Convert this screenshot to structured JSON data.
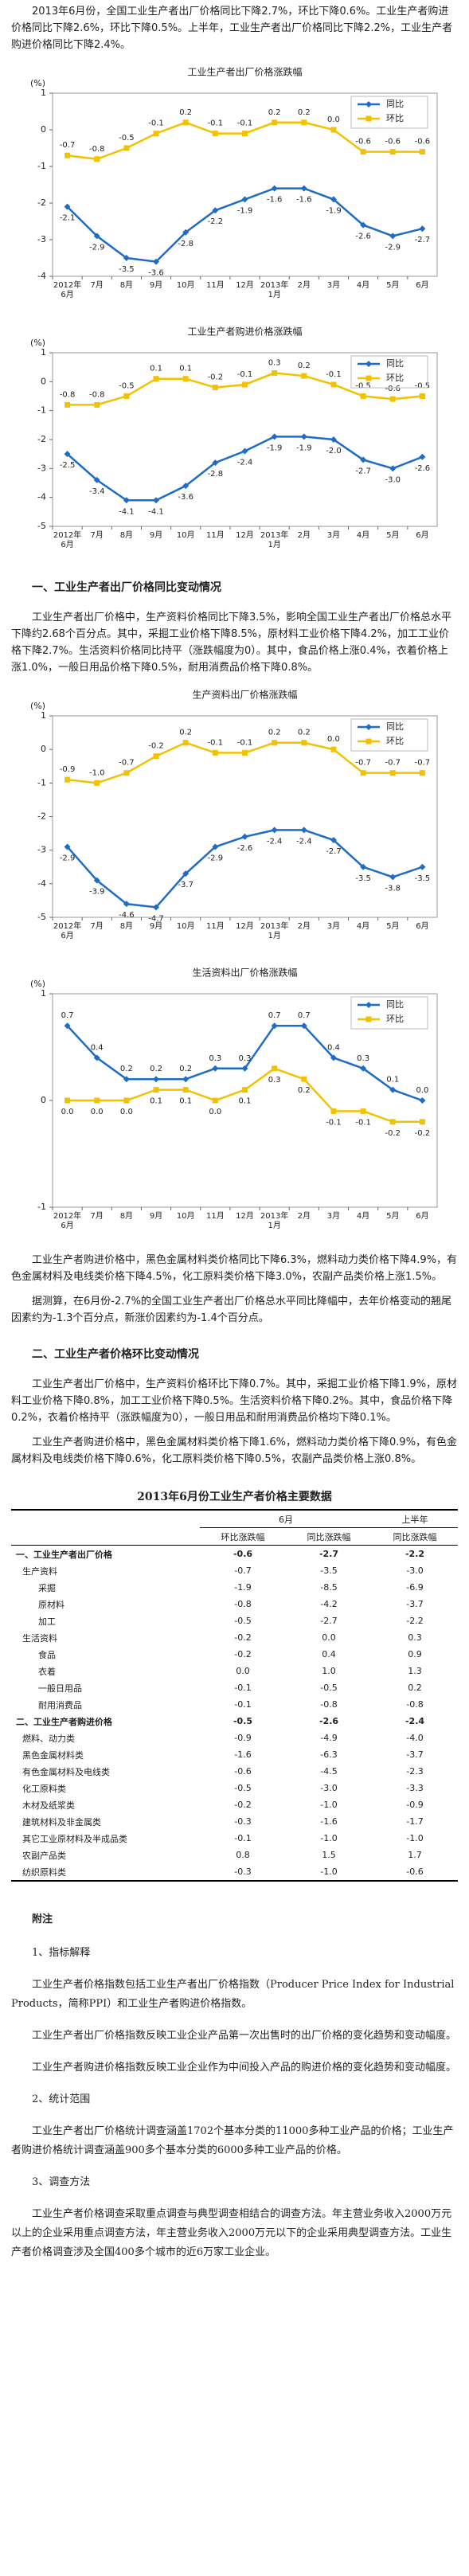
{
  "paragraphs": [
    "2013年6月份，全国工业生产者出厂价格同比下降2.7%，环比下降0.6%。工业生产者购进价格同比下降2.6%，环比下降0.5%。上半年，工业生产者出厂价格同比下降2.2%，工业生产者购进价格同比下降2.4%。",
    "工业生产者出厂价格中，生产资料价格同比下降3.5%，影响全国工业生产者出厂价格总水平下降约2.68个百分点。其中，采掘工业价格下降8.5%，原材料工业价格下降4.2%，加工工业价格下降2.7%。生活资料价格同比持平（涨跌幅度为0）。其中，食品价格上涨0.4%，衣着价格上涨1.0%，一般日用品价格下降0.5%，耐用消费品价格下降0.8%。",
    "工业生产者购进价格中，黑色金属材料类价格同比下降6.3%，燃料动力类价格下降4.9%，有色金属材料及电线类价格下降4.5%，化工原料类价格下降3.0%，农副产品类价格上涨1.5%。",
    "据测算，在6月份-2.7%的全国工业生产者出厂价格总水平同比降幅中，去年价格变动的翘尾因素约为-1.3个百分点，新涨价因素约为-1.4个百分点。",
    "工业生产者出厂价格中，生产资料价格环比下降0.7%。其中，采掘工业价格下降1.9%，原材料工业价格下降0.8%，加工工业价格下降0.5%。生活资料价格下降0.2%。其中，食品价格下降0.2%，衣着价格持平（涨跌幅度为0），一般日用品和耐用消费品价格均下降0.1%。",
    "工业生产者购进价格中，黑色金属材料类价格下降1.6%，燃料动力类价格下降0.9%，有色金属材料及电线类价格下降0.6%，化工原料类价格下降0.5%，农副产品类价格上涨0.8%。"
  ],
  "headings": [
    "一、工业生产者出厂价格同比变动情况",
    "二、工业生产者价格环比变动情况"
  ],
  "chart_data": [
    {
      "type": "line",
      "title": "工业生产者出厂价格涨跌幅",
      "y_label": "(%)",
      "categories": [
        "2012年\n6月",
        "7月",
        "8月",
        "9月",
        "10月",
        "11月",
        "12月",
        "2013年\n1月",
        "2月",
        "3月",
        "4月",
        "5月",
        "6月"
      ],
      "ylim": [
        -4,
        1
      ],
      "yticks": [
        1,
        0,
        -1,
        -2,
        -3,
        -4
      ],
      "series": [
        {
          "name": "同比",
          "color": "#1f6cc4",
          "values": [
            -2.1,
            -2.9,
            -3.5,
            -3.6,
            -2.8,
            -2.2,
            -1.9,
            -1.6,
            -1.6,
            -1.9,
            -2.6,
            -2.9,
            -2.7
          ],
          "value_labels": [
            "-2.1",
            "-2.9",
            "-3.5",
            "-3.6",
            "-2.8",
            "-2.2",
            "-1.9",
            "-1.6",
            "-1.6",
            "-1.9",
            "-2.6",
            "-2.9",
            "-2.7"
          ]
        },
        {
          "name": "环比",
          "color": "#f2c200",
          "values": [
            -0.7,
            -0.8,
            -0.5,
            -0.1,
            0.2,
            -0.1,
            -0.1,
            0.2,
            0.2,
            0.0,
            -0.6,
            -0.6,
            -0.6
          ],
          "value_labels": [
            "-0.7",
            "-0.8",
            "-0.5",
            "-0.1",
            "0.2",
            "-0.1",
            "-0.1",
            "0.2",
            "0.2",
            "0.0",
            "-0.6",
            "-0.6",
            "-0.6"
          ]
        }
      ]
    },
    {
      "type": "line",
      "title": "工业生产者购进价格涨跌幅",
      "y_label": "(%)",
      "categories": [
        "2012年\n6月",
        "7月",
        "8月",
        "9月",
        "10月",
        "11月",
        "12月",
        "2013年\n1月",
        "2月",
        "3月",
        "4月",
        "5月",
        "6月"
      ],
      "ylim": [
        -5,
        1
      ],
      "yticks": [
        1,
        0,
        -1,
        -2,
        -3,
        -4,
        -5
      ],
      "series": [
        {
          "name": "同比",
          "color": "#1f6cc4",
          "values": [
            -2.5,
            -3.4,
            -4.1,
            -4.1,
            -3.6,
            -2.8,
            -2.4,
            -1.9,
            -1.9,
            -2.0,
            -2.7,
            -3.0,
            -2.6
          ],
          "value_labels": [
            "-2.5",
            "-3.4",
            "-4.1",
            "-4.1",
            "-3.6",
            "-2.8",
            "-2.4",
            "-1.9",
            "-1.9",
            "-2.0",
            "-2.7",
            "-3.0",
            "-2.6"
          ]
        },
        {
          "name": "环比",
          "color": "#f2c200",
          "values": [
            -0.8,
            -0.8,
            -0.5,
            0.1,
            0.1,
            -0.2,
            -0.1,
            0.3,
            0.2,
            -0.1,
            -0.5,
            -0.6,
            -0.5
          ],
          "value_labels": [
            "-0.8",
            "-0.8",
            "-0.5",
            "0.1",
            "0.1",
            "-0.2",
            "-0.1",
            "0.3",
            "0.2",
            "-0.1",
            "-0.5",
            "-0.6",
            "-0.5"
          ]
        }
      ]
    },
    {
      "type": "line",
      "title": "生产资料出厂价格涨跌幅",
      "y_label": "(%)",
      "categories": [
        "2012年\n6月",
        "7月",
        "8月",
        "9月",
        "10月",
        "11月",
        "12月",
        "2013年\n1月",
        "2月",
        "3月",
        "4月",
        "5月",
        "6月"
      ],
      "ylim": [
        -5,
        1
      ],
      "yticks": [
        1,
        0,
        -1,
        -2,
        -3,
        -4,
        -5
      ],
      "series": [
        {
          "name": "同比",
          "color": "#1f6cc4",
          "values": [
            -2.9,
            -3.9,
            -4.6,
            -4.7,
            -3.7,
            -2.9,
            -2.6,
            -2.4,
            -2.4,
            -2.7,
            -3.5,
            -3.8,
            -3.5
          ],
          "value_labels": [
            "-2.9",
            "-3.9",
            "-4.6",
            "-4.7",
            "-3.7",
            "-2.9",
            "-2.6",
            "-2.4",
            "-2.4",
            "-2.7",
            "-3.5",
            "-3.8",
            "-3.5"
          ]
        },
        {
          "name": "环比",
          "color": "#f2c200",
          "values": [
            -0.9,
            -1.0,
            -0.7,
            -0.2,
            0.2,
            -0.1,
            -0.1,
            0.2,
            0.2,
            0.0,
            -0.7,
            -0.7,
            -0.7
          ],
          "value_labels": [
            "-0.9",
            "-1.0",
            "-0.7",
            "-0.2",
            "0.2",
            "-0.1",
            "-0.1",
            "0.2",
            "0.2",
            "0.0",
            "-0.7",
            "-0.7",
            "-0.7"
          ]
        }
      ]
    },
    {
      "type": "line",
      "title": "生活资料出厂价格涨跌幅",
      "y_label": "(%)",
      "categories": [
        "2012年\n6月",
        "7月",
        "8月",
        "9月",
        "10月",
        "11月",
        "12月",
        "2013年\n1月",
        "2月",
        "3月",
        "4月",
        "5月",
        "6月"
      ],
      "ylim": [
        -1,
        1
      ],
      "yticks": [
        1,
        0,
        -1
      ],
      "series": [
        {
          "name": "同比",
          "color": "#1f6cc4",
          "values": [
            0.7,
            0.4,
            0.2,
            0.2,
            0.2,
            0.3,
            0.3,
            0.7,
            0.7,
            0.4,
            0.3,
            0.1,
            0.0
          ],
          "value_labels": [
            "0.7",
            "0.4",
            "0.2",
            "0.2",
            "0.2",
            "0.3",
            "0.3",
            "0.7",
            "0.7",
            "0.4",
            "0.3",
            "0.1",
            "0.0"
          ]
        },
        {
          "name": "环比",
          "color": "#f2c200",
          "values": [
            0.0,
            0.0,
            0.0,
            0.1,
            0.1,
            0.0,
            0.1,
            0.3,
            0.2,
            -0.1,
            -0.1,
            -0.2,
            -0.2
          ],
          "value_labels": [
            "0.0",
            "0.0",
            "0.0",
            "0.1",
            "0.1",
            "0.0",
            "0.1",
            "0.3",
            "0.2",
            "-0.1",
            "-0.1",
            "-0.2",
            "-0.2"
          ]
        }
      ]
    }
  ],
  "table": {
    "title": "2013年6月份工业生产者价格主要数据",
    "header": {
      "month": "6月",
      "half": "上半年",
      "mom": "环比涨跌幅",
      "yoy": "同比涨跌幅",
      "half_yoy": "同比涨跌幅"
    },
    "rows": [
      [
        "一、工业生产者出厂价格",
        "-0.6",
        "-2.7",
        "-2.2"
      ],
      [
        "生产资料",
        "-0.7",
        "-3.5",
        "-3.0"
      ],
      [
        "采掘",
        "-1.9",
        "-8.5",
        "-6.9"
      ],
      [
        "原材料",
        "-0.8",
        "-4.2",
        "-3.7"
      ],
      [
        "加工",
        "-0.5",
        "-2.7",
        "-2.2"
      ],
      [
        "生活资料",
        "-0.2",
        "0.0",
        "0.3"
      ],
      [
        "食品",
        "-0.2",
        "0.4",
        "0.9"
      ],
      [
        "衣着",
        "0.0",
        "1.0",
        "1.3"
      ],
      [
        "一般日用品",
        "-0.1",
        "-0.5",
        "0.2"
      ],
      [
        "耐用消费品",
        "-0.1",
        "-0.8",
        "-0.8"
      ],
      [
        "二、工业生产者购进价格",
        "-0.5",
        "-2.6",
        "-2.4"
      ],
      [
        "燃料、动力类",
        "-0.9",
        "-4.9",
        "-4.0"
      ],
      [
        "黑色金属材料类",
        "-1.6",
        "-6.3",
        "-3.7"
      ],
      [
        "有色金属材料及电线类",
        "-0.6",
        "-4.5",
        "-2.3"
      ],
      [
        "化工原料类",
        "-0.5",
        "-3.0",
        "-3.3"
      ],
      [
        "木材及纸浆类",
        "-0.2",
        "-1.0",
        "-0.9"
      ],
      [
        "建筑材料及非金属类",
        "-0.3",
        "-1.6",
        "-1.7"
      ],
      [
        "其它工业原材料及半成品类",
        "-0.1",
        "-1.0",
        "-1.0"
      ],
      [
        "农副产品类",
        "0.8",
        "1.5",
        "1.7"
      ],
      [
        "纺织原料类",
        "-0.3",
        "-1.0",
        "-0.6"
      ]
    ]
  },
  "notes": {
    "title": "附注",
    "items": [
      "1、指标解释",
      "工业生产者价格指数包括工业生产者出厂价格指数（Producer Price Index for Industrial Products，简称PPI）和工业生产者购进价格指数。",
      "工业生产者出厂价格指数反映工业企业产品第一次出售时的出厂价格的变化趋势和变动幅度。",
      "工业生产者购进价格指数反映工业企业作为中间投入产品的购进价格的变化趋势和变动幅度。",
      "2、统计范围",
      "工业生产者出厂价格统计调查涵盖1702个基本分类的11000多种工业产品的价格；工业生产者购进价格统计调查涵盖900多个基本分类的6000多种工业产品的价格。",
      "3、调查方法",
      "工业生产者价格调查采取重点调查与典型调查相结合的调查方法。年主营业务收入2000万元以上的企业采用重点调查方法，年主营业务收入2000万元以下的企业采用典型调查方法。工业生产者价格调查涉及全国400多个城市的近6万家工业企业。"
    ]
  }
}
